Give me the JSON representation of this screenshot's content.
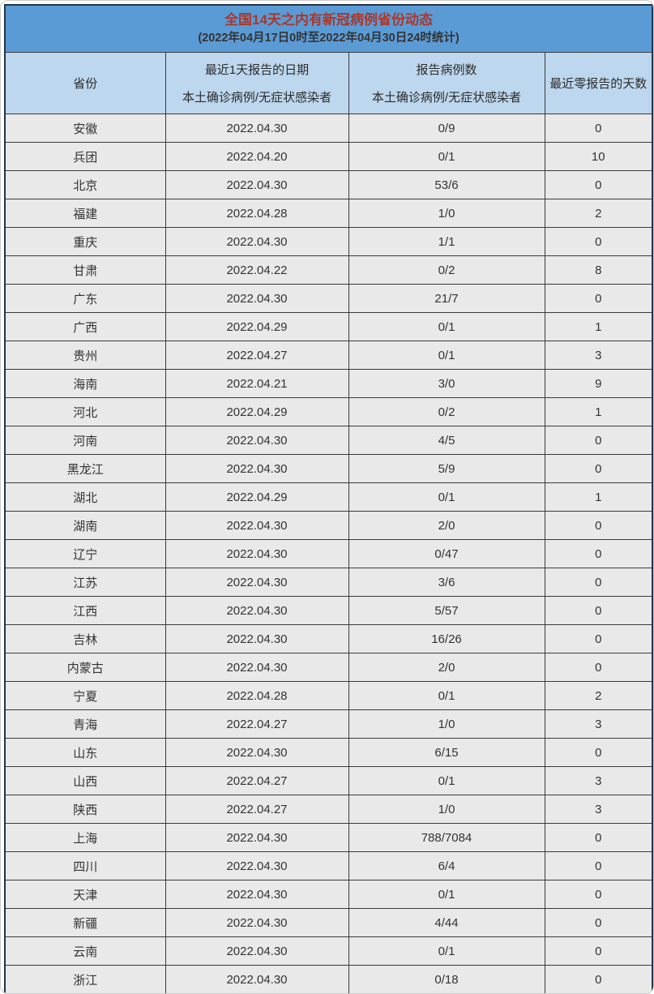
{
  "chart_data": {
    "type": "table",
    "title": "全国14天之内有新冠病例省份动态",
    "subtitle": "(2022年04月17日0时至2022年04月30日24时统计)",
    "columns": [
      {
        "label": "省份"
      },
      {
        "line1": "最近1天报告的日期",
        "line2": "本土确诊病例/无症状感染者"
      },
      {
        "line1": "报告病例数",
        "line2": "本土确诊病例/无症状感染者"
      },
      {
        "label": "最近零报告的天数"
      }
    ],
    "rows": [
      {
        "province": "安徽",
        "date": "2022.04.30",
        "cases": "0/9",
        "days": "0"
      },
      {
        "province": "兵团",
        "date": "2022.04.20",
        "cases": "0/1",
        "days": "10"
      },
      {
        "province": "北京",
        "date": "2022.04.30",
        "cases": "53/6",
        "days": "0"
      },
      {
        "province": "福建",
        "date": "2022.04.28",
        "cases": "1/0",
        "days": "2"
      },
      {
        "province": "重庆",
        "date": "2022.04.30",
        "cases": "1/1",
        "days": "0"
      },
      {
        "province": "甘肃",
        "date": "2022.04.22",
        "cases": "0/2",
        "days": "8"
      },
      {
        "province": "广东",
        "date": "2022.04.30",
        "cases": "21/7",
        "days": "0"
      },
      {
        "province": "广西",
        "date": "2022.04.29",
        "cases": "0/1",
        "days": "1"
      },
      {
        "province": "贵州",
        "date": "2022.04.27",
        "cases": "0/1",
        "days": "3"
      },
      {
        "province": "海南",
        "date": "2022.04.21",
        "cases": "3/0",
        "days": "9"
      },
      {
        "province": "河北",
        "date": "2022.04.29",
        "cases": "0/2",
        "days": "1"
      },
      {
        "province": "河南",
        "date": "2022.04.30",
        "cases": "4/5",
        "days": "0"
      },
      {
        "province": "黑龙江",
        "date": "2022.04.30",
        "cases": "5/9",
        "days": "0"
      },
      {
        "province": "湖北",
        "date": "2022.04.29",
        "cases": "0/1",
        "days": "1"
      },
      {
        "province": "湖南",
        "date": "2022.04.30",
        "cases": "2/0",
        "days": "0"
      },
      {
        "province": "辽宁",
        "date": "2022.04.30",
        "cases": "0/47",
        "days": "0"
      },
      {
        "province": "江苏",
        "date": "2022.04.30",
        "cases": "3/6",
        "days": "0"
      },
      {
        "province": "江西",
        "date": "2022.04.30",
        "cases": "5/57",
        "days": "0"
      },
      {
        "province": "吉林",
        "date": "2022.04.30",
        "cases": "16/26",
        "days": "0"
      },
      {
        "province": "内蒙古",
        "date": "2022.04.30",
        "cases": "2/0",
        "days": "0"
      },
      {
        "province": "宁夏",
        "date": "2022.04.28",
        "cases": "0/1",
        "days": "2"
      },
      {
        "province": "青海",
        "date": "2022.04.27",
        "cases": "1/0",
        "days": "3"
      },
      {
        "province": "山东",
        "date": "2022.04.30",
        "cases": "6/15",
        "days": "0"
      },
      {
        "province": "山西",
        "date": "2022.04.27",
        "cases": "0/1",
        "days": "3"
      },
      {
        "province": "陕西",
        "date": "2022.04.27",
        "cases": "1/0",
        "days": "3"
      },
      {
        "province": "上海",
        "date": "2022.04.30",
        "cases": "788/7084",
        "days": "0"
      },
      {
        "province": "四川",
        "date": "2022.04.30",
        "cases": "6/4",
        "days": "0"
      },
      {
        "province": "天津",
        "date": "2022.04.30",
        "cases": "0/1",
        "days": "0"
      },
      {
        "province": "新疆",
        "date": "2022.04.30",
        "cases": "4/44",
        "days": "0"
      },
      {
        "province": "云南",
        "date": "2022.04.30",
        "cases": "0/1",
        "days": "0"
      },
      {
        "province": "浙江",
        "date": "2022.04.30",
        "cases": "0/18",
        "days": "0"
      }
    ]
  },
  "colors": {
    "page-bg": "#ffffff",
    "frame-border": "#c9c9c9",
    "outer-border": "#22344a",
    "grid-border": "#3a3a3a",
    "title-bar-bg": "#5b9bd5",
    "title-text": "#a8382b",
    "subtitle-text": "#333333",
    "header-bg": "#bdd7ee",
    "header-text": "#2b2b2b",
    "row-bg": "#e9e9e9",
    "cell-text": "#333333"
  }
}
